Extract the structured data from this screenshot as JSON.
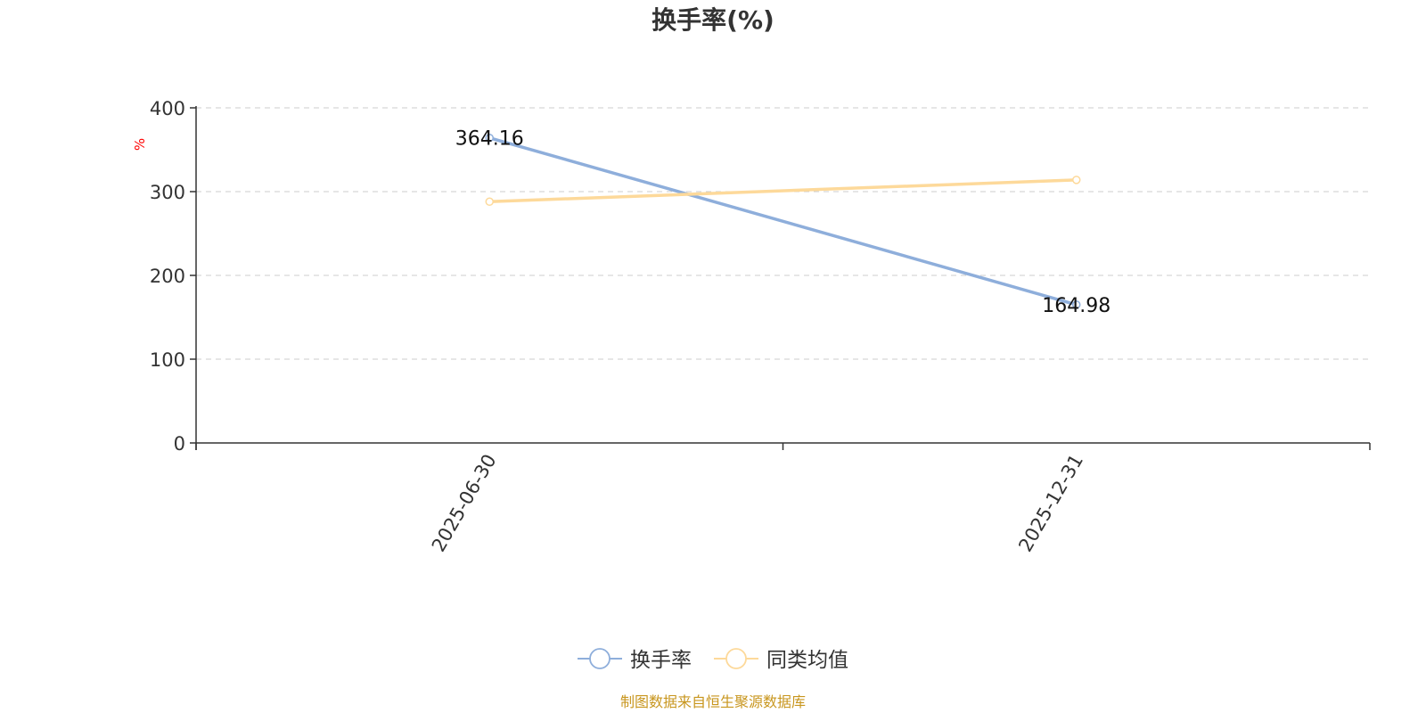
{
  "chart_data": {
    "type": "line",
    "title": "换手率(%)",
    "ylabel": "%",
    "ylim": [
      0,
      400
    ],
    "yticks": [
      "0",
      "100",
      "200",
      "300",
      "400"
    ],
    "categories": [
      "2025-06-30",
      "2025-12-31"
    ],
    "series": [
      {
        "name": "换手率",
        "values": [
          364.16,
          164.98
        ],
        "color": "#8eaedb",
        "labels": [
          "364.16",
          "164.98"
        ]
      },
      {
        "name": "同类均值",
        "values": [
          288,
          314
        ],
        "color": "#fdd99a"
      }
    ],
    "grid": true,
    "legend": "bottom-center"
  },
  "footer": {
    "source": "制图数据来自恒生聚源数据库"
  }
}
